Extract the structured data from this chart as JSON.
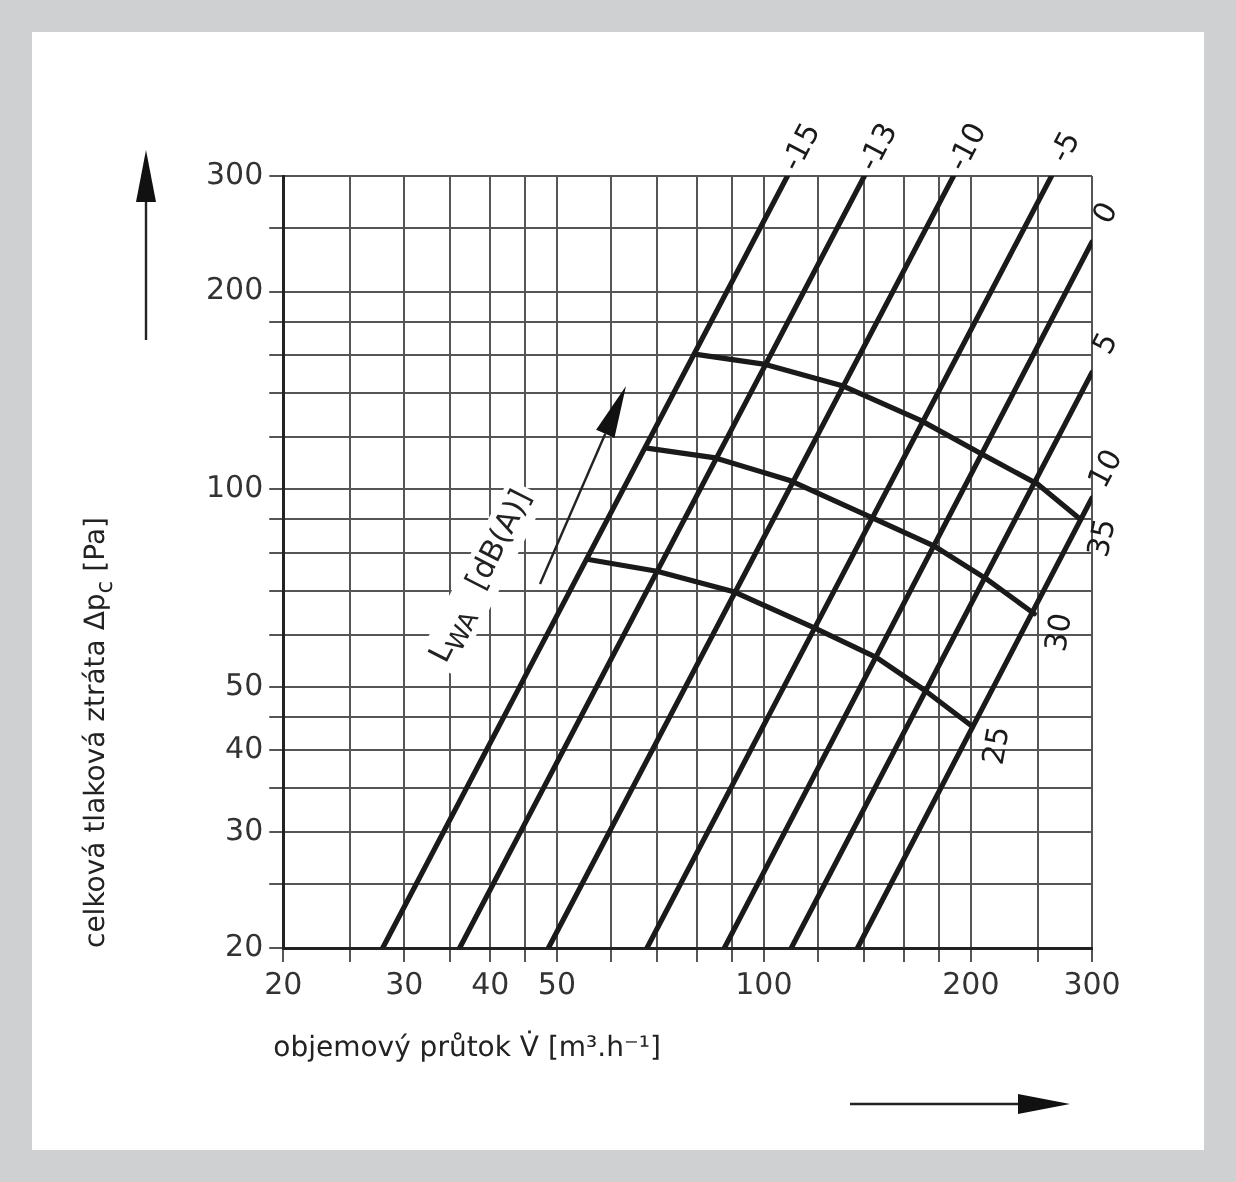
{
  "chart_data": {
    "type": "line",
    "xlabel": "objemový průtok V̇ [m³.h⁻¹]",
    "ylabel": "celková tlaková ztráta Δp$_{c}$ [Pa]",
    "log": "xy",
    "grid": true,
    "marker": "none",
    "line_style": "solid",
    "xlim": [
      20,
      300
    ],
    "ylim": [
      20,
      300
    ],
    "xticks": [
      20,
      {
        "value": 25,
        "label": null
      },
      30,
      {
        "value": 35,
        "label": null
      },
      40,
      {
        "value": 45,
        "label": null
      },
      50,
      {
        "value": 60,
        "label": null
      },
      {
        "value": 70,
        "label": null
      },
      {
        "value": 80,
        "label": null
      },
      {
        "value": 90,
        "label": null
      },
      100,
      {
        "value": 120,
        "label": null
      },
      {
        "value": 140,
        "label": null
      },
      {
        "value": 160,
        "label": null
      },
      {
        "value": 180,
        "label": null
      },
      200,
      {
        "value": 250,
        "label": null
      },
      300
    ],
    "yticks": [
      20,
      {
        "value": 25,
        "label": null
      },
      30,
      {
        "value": 35,
        "label": null
      },
      40,
      {
        "value": 45,
        "label": null
      },
      50,
      {
        "value": 60,
        "label": null
      },
      {
        "value": 70,
        "label": null
      },
      {
        "value": 80,
        "label": null
      },
      {
        "value": 90,
        "label": null
      },
      100,
      {
        "value": 120,
        "label": null
      },
      {
        "value": 140,
        "label": null
      },
      {
        "value": 160,
        "label": null
      },
      {
        "value": 180,
        "label": null
      },
      200,
      {
        "value": 250,
        "label": null
      },
      300
    ],
    "annotations": [
      "L$_{WA}$ [dB(A)]"
    ],
    "series": [
      {
        "name": "-15",
        "color": "#1a1a1a",
        "x": [
          27.9,
          108.2
        ],
        "values": [
          20,
          300
        ]
      },
      {
        "name": "-13",
        "color": "#1a1a1a",
        "x": [
          36.1,
          140
        ],
        "values": [
          20,
          300
        ]
      },
      {
        "name": "-10",
        "color": "#1a1a1a",
        "x": [
          48.6,
          188.7
        ],
        "values": [
          20,
          300
        ]
      },
      {
        "name": "-5",
        "color": "#1a1a1a",
        "x": [
          67.6,
          262
        ],
        "values": [
          20,
          300
        ]
      },
      {
        "name": "0",
        "color": "#1a1a1a",
        "x": [
          87.6,
          300
        ],
        "values": [
          20,
          238
        ]
      },
      {
        "name": "5",
        "color": "#1a1a1a",
        "x": [
          109.6,
          300
        ],
        "values": [
          20,
          150.6
        ]
      },
      {
        "name": "10",
        "color": "#1a1a1a",
        "x": [
          136.8,
          300
        ],
        "values": [
          20,
          97
        ]
      },
      {
        "name": "35",
        "color": "#1a1a1a",
        "x": [
          79.3,
          99.9,
          130,
          169.3,
          208,
          250,
          287
        ],
        "values": [
          160.6,
          155.1,
          143.8,
          127.2,
          112.9,
          101.8,
          90.4
        ]
      },
      {
        "name": "30",
        "color": "#1a1a1a",
        "x": [
          67.6,
          85,
          109.4,
          142.5,
          177.3,
          210.6,
          247.3
        ],
        "values": [
          115.5,
          111.6,
          103,
          90.8,
          81.8,
          73,
          64.6
        ]
      },
      {
        "name": "25",
        "color": "#1a1a1a",
        "x": [
          55.3,
          69.9,
          90.7,
          118.6,
          145.9,
          171.3,
          201
        ],
        "values": [
          78.2,
          75,
          69.7,
          61.4,
          55.4,
          49.4,
          43.5
        ]
      }
    ]
  }
}
